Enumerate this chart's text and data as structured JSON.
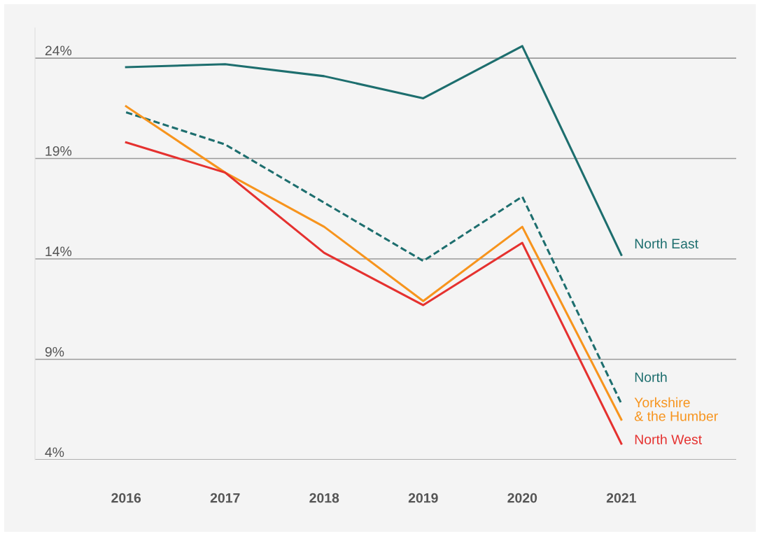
{
  "chart_data": {
    "type": "line",
    "categories": [
      "2016",
      "2017",
      "2018",
      "2019",
      "2020",
      "2021"
    ],
    "ylim": [
      4,
      25.5
    ],
    "yticks": [
      {
        "value": 4,
        "label": "4%"
      },
      {
        "value": 9,
        "label": "9%"
      },
      {
        "value": 14,
        "label": "14%"
      },
      {
        "value": 19,
        "label": "19%"
      },
      {
        "value": 24,
        "label": "24%"
      }
    ],
    "grid": "y",
    "series": [
      {
        "name": "North East",
        "color": "#1d6e6e",
        "line_style": "solid",
        "values": [
          23.55,
          23.7,
          23.1,
          22.0,
          24.6,
          14.2
        ]
      },
      {
        "name": "North",
        "color": "#1d6e6e",
        "line_style": "dashed",
        "values": [
          21.3,
          19.7,
          16.8,
          13.9,
          17.1,
          6.8
        ]
      },
      {
        "name": "Yorkshire & the Humber",
        "color": "#f7941d",
        "line_style": "solid",
        "values": [
          21.6,
          18.3,
          15.6,
          11.9,
          15.6,
          6.0
        ]
      },
      {
        "name": "North West",
        "color": "#e5312f",
        "line_style": "solid",
        "values": [
          19.8,
          18.3,
          14.3,
          11.7,
          14.8,
          4.8
        ]
      }
    ]
  }
}
